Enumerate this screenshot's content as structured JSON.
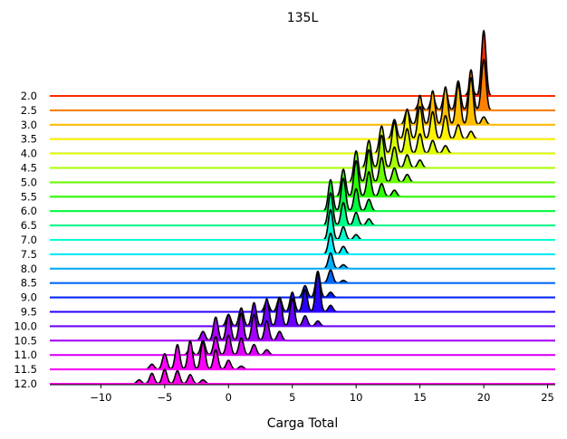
{
  "chart_data": {
    "type": "area",
    "kind": "ridgeline",
    "title": "135L",
    "xlabel": "Carga Total",
    "ylabel": "",
    "xlim": [
      -14,
      25.6
    ],
    "xticks": [
      -10,
      -5,
      0,
      5,
      10,
      15,
      20,
      25
    ],
    "categories": [
      "2.0",
      "2.5",
      "3.0",
      "3.5",
      "4.0",
      "4.5",
      "5.0",
      "5.5",
      "6.0",
      "6.5",
      "7.0",
      "7.5",
      "8.0",
      "8.5",
      "9.0",
      "9.5",
      "10.0",
      "10.5",
      "11.0",
      "11.5",
      "12.0"
    ],
    "colors": [
      "#ff2a00",
      "#ff8000",
      "#ffbf00",
      "#fff200",
      "#dfff00",
      "#a8ff00",
      "#6aff00",
      "#2bff00",
      "#00ff3c",
      "#00ff8a",
      "#00ffd0",
      "#00f0ff",
      "#00b0ff",
      "#0068ff",
      "#0022ff",
      "#2a00ff",
      "#6a00ff",
      "#a800ff",
      "#e000ff",
      "#ff00ff",
      "#ff00ea"
    ],
    "series": [
      {
        "label": "2.0",
        "peaks": [
          [
            20,
            1.0
          ],
          [
            19,
            0.18
          ]
        ]
      },
      {
        "label": "2.5",
        "peaks": [
          [
            20,
            0.78
          ],
          [
            19,
            0.62
          ],
          [
            18,
            0.45
          ],
          [
            17,
            0.32
          ],
          [
            16,
            0.22
          ],
          [
            15,
            0.14
          ]
        ]
      },
      {
        "label": "3.0",
        "peaks": [
          [
            19,
            0.72
          ],
          [
            18,
            0.62
          ],
          [
            17,
            0.58
          ],
          [
            16,
            0.52
          ],
          [
            15,
            0.45
          ],
          [
            14,
            0.22
          ],
          [
            20,
            0.12
          ]
        ]
      },
      {
        "label": "3.5",
        "peaks": [
          [
            15,
            0.5
          ],
          [
            14,
            0.46
          ],
          [
            16,
            0.42
          ],
          [
            17,
            0.36
          ],
          [
            13,
            0.3
          ],
          [
            18,
            0.22
          ],
          [
            19,
            0.12
          ]
        ]
      },
      {
        "label": "4.0",
        "peaks": [
          [
            13,
            0.48
          ],
          [
            12,
            0.42
          ],
          [
            14,
            0.38
          ],
          [
            15,
            0.3
          ],
          [
            16,
            0.2
          ],
          [
            17,
            0.12
          ]
        ]
      },
      {
        "label": "4.5",
        "peaks": [
          [
            12,
            0.5
          ],
          [
            11,
            0.42
          ],
          [
            13,
            0.32
          ],
          [
            14,
            0.2
          ],
          [
            15,
            0.12
          ]
        ]
      },
      {
        "label": "5.0",
        "peaks": [
          [
            11,
            0.5
          ],
          [
            10,
            0.48
          ],
          [
            12,
            0.38
          ],
          [
            13,
            0.22
          ],
          [
            14,
            0.12
          ]
        ]
      },
      {
        "label": "5.5",
        "peaks": [
          [
            10,
            0.55
          ],
          [
            9,
            0.42
          ],
          [
            11,
            0.38
          ],
          [
            12,
            0.2
          ],
          [
            13,
            0.1
          ]
        ]
      },
      {
        "label": "6.0",
        "peaks": [
          [
            9,
            0.5
          ],
          [
            8,
            0.48
          ],
          [
            10,
            0.34
          ],
          [
            11,
            0.18
          ]
        ]
      },
      {
        "label": "6.5",
        "peaks": [
          [
            8,
            0.5
          ],
          [
            9,
            0.35
          ],
          [
            10,
            0.2
          ],
          [
            11,
            0.1
          ]
        ]
      },
      {
        "label": "7.0",
        "peaks": [
          [
            8,
            0.46
          ],
          [
            9,
            0.2
          ],
          [
            10,
            0.08
          ]
        ]
      },
      {
        "label": "7.5",
        "peaks": [
          [
            8,
            0.32
          ],
          [
            9,
            0.12
          ]
        ]
      },
      {
        "label": "8.0",
        "peaks": [
          [
            8,
            0.24
          ],
          [
            9,
            0.06
          ]
        ]
      },
      {
        "label": "8.5",
        "peaks": [
          [
            8,
            0.2
          ],
          [
            9,
            0.04
          ]
        ]
      },
      {
        "label": "9.0",
        "peaks": [
          [
            7,
            0.4
          ],
          [
            6,
            0.18
          ],
          [
            8,
            0.08
          ]
        ]
      },
      {
        "label": "9.5",
        "peaks": [
          [
            7,
            0.6
          ],
          [
            6,
            0.34
          ],
          [
            5,
            0.3
          ],
          [
            4,
            0.22
          ],
          [
            3,
            0.16
          ],
          [
            8,
            0.1
          ]
        ]
      },
      {
        "label": "10.0",
        "peaks": [
          [
            5,
            0.42
          ],
          [
            4,
            0.44
          ],
          [
            3,
            0.42
          ],
          [
            2,
            0.36
          ],
          [
            1,
            0.28
          ],
          [
            0,
            0.18
          ],
          [
            6,
            0.16
          ],
          [
            7,
            0.08
          ]
        ]
      },
      {
        "label": "10.5",
        "peaks": [
          [
            2,
            0.4
          ],
          [
            1,
            0.42
          ],
          [
            0,
            0.4
          ],
          [
            -1,
            0.36
          ],
          [
            3,
            0.3
          ],
          [
            -2,
            0.14
          ],
          [
            4,
            0.14
          ]
        ]
      },
      {
        "label": "11.0",
        "peaks": [
          [
            0,
            0.3
          ],
          [
            -1,
            0.28
          ],
          [
            1,
            0.26
          ],
          [
            -2,
            0.22
          ],
          [
            2,
            0.16
          ],
          [
            -3,
            0.1
          ],
          [
            3,
            0.08
          ]
        ]
      },
      {
        "label": "11.5",
        "peaks": [
          [
            -3,
            0.44
          ],
          [
            -2,
            0.42
          ],
          [
            -4,
            0.38
          ],
          [
            -1,
            0.3
          ],
          [
            -5,
            0.24
          ],
          [
            0,
            0.14
          ],
          [
            -6,
            0.08
          ],
          [
            1,
            0.05
          ]
        ]
      },
      {
        "label": "12.0",
        "peaks": [
          [
            -5,
            0.22
          ],
          [
            -4,
            0.2
          ],
          [
            -6,
            0.16
          ],
          [
            -3,
            0.14
          ],
          [
            -7,
            0.06
          ],
          [
            -2,
            0.06
          ]
        ]
      }
    ]
  }
}
